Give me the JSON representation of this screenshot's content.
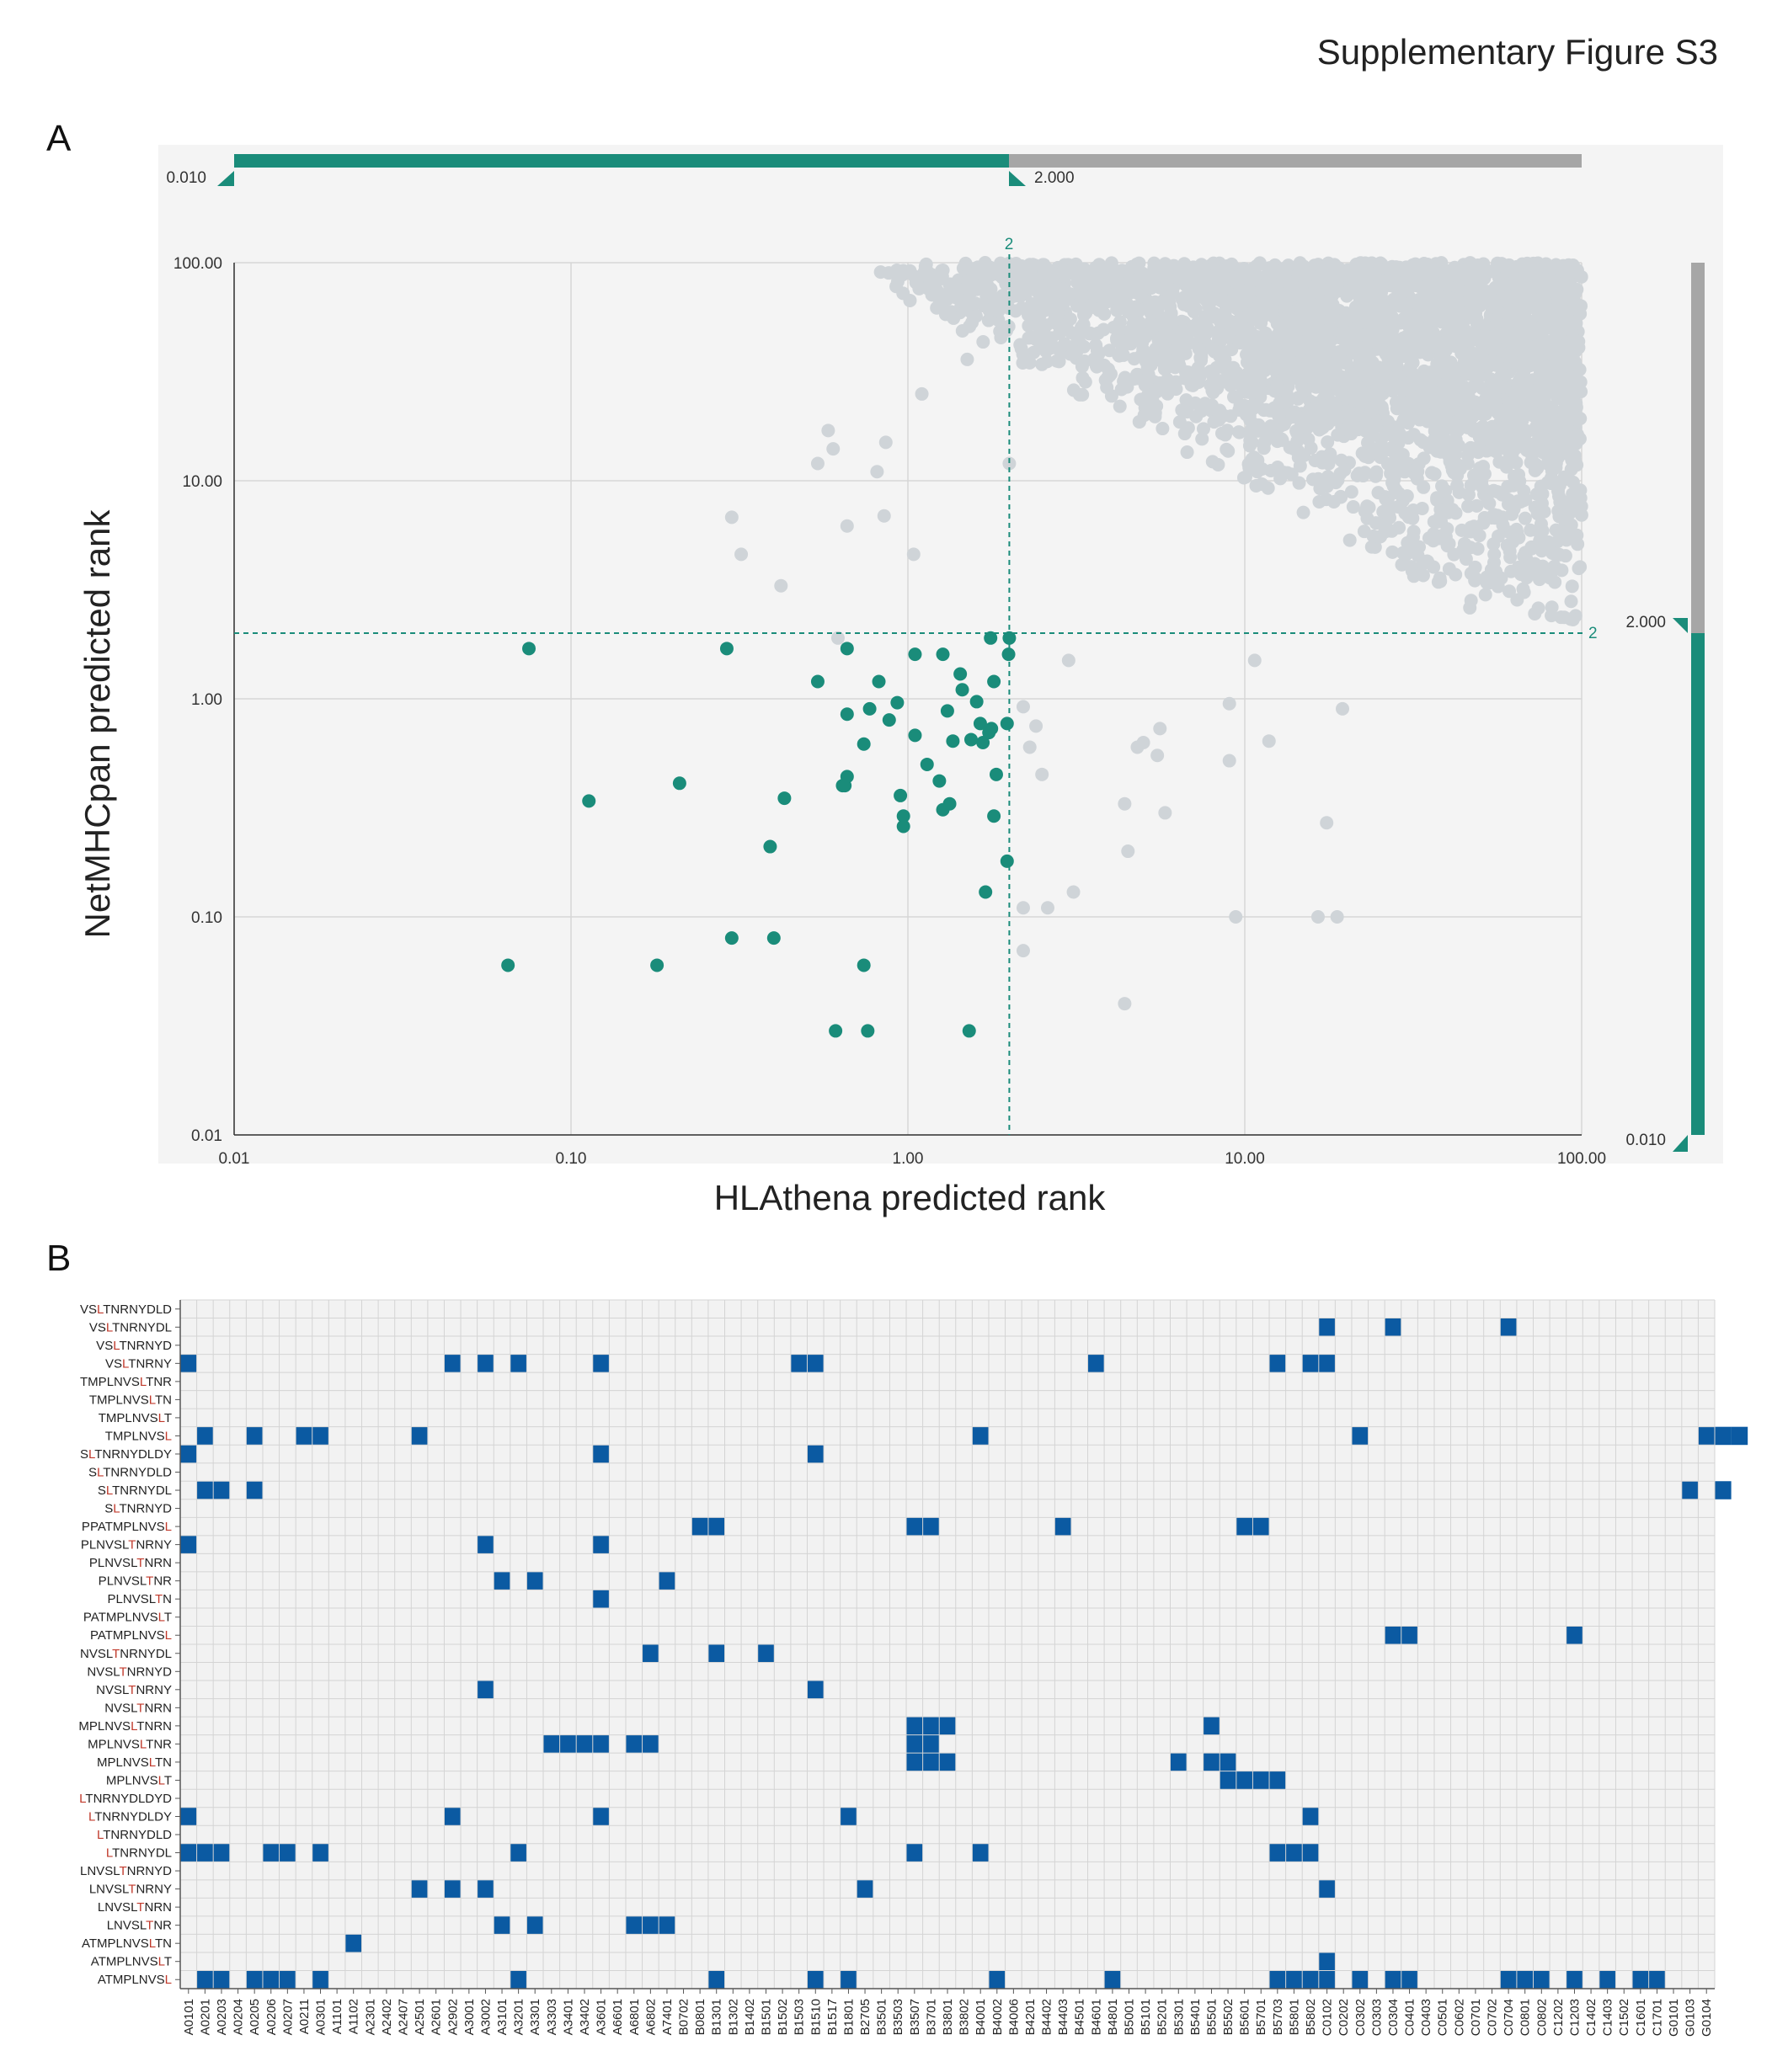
{
  "figure_title": "Supplementary Figure S3",
  "panel_a": {
    "label": "A",
    "slider_top": {
      "min_label": "0.010",
      "max_label": "2.000"
    },
    "slider_right": {
      "max_label": "2.000",
      "min_label": "0.010"
    },
    "threshold_label_x": "2",
    "threshold_label_y": "2"
  },
  "panel_b": {
    "label": "B"
  },
  "colors": {
    "selected": "#1a8c7a",
    "other": "#cfd4d8",
    "heat_on": "#0b5aa2",
    "grid": "#d9d9d9",
    "slider_gray": "#a6a6a6"
  },
  "chart_data": [
    {
      "type": "scatter",
      "xlabel": "HLAthena predicted rank",
      "ylabel": "NetMHCpan predicted rank",
      "x_scale": "log",
      "y_scale": "log",
      "xlim": [
        0.01,
        100
      ],
      "ylim": [
        0.01,
        100
      ],
      "x_ticks": [
        "0.01",
        "0.10",
        "1.00",
        "10.00",
        "100.00"
      ],
      "y_ticks": [
        "100.00",
        "10.00",
        "1.00",
        "0.10",
        "0.01"
      ],
      "thresholds": {
        "x": 2,
        "y": 2
      },
      "grid": true,
      "series": [
        {
          "name": "",
          "points": [
            [
              0.075,
              1.7
            ],
            [
              0.065,
              0.06
            ],
            [
              0.113,
              0.34
            ],
            [
              0.21,
              0.41
            ],
            [
              0.29,
              1.7
            ],
            [
              0.3,
              0.08
            ],
            [
              0.18,
              0.06
            ],
            [
              0.39,
              0.21
            ],
            [
              0.43,
              0.35
            ],
            [
              0.4,
              0.08
            ],
            [
              0.54,
              1.2
            ],
            [
              0.61,
              0.03
            ],
            [
              0.65,
              0.4
            ],
            [
              0.66,
              0.44
            ],
            [
              0.66,
              1.7
            ],
            [
              0.66,
              0.85
            ],
            [
              0.74,
              0.62
            ],
            [
              0.74,
              0.06
            ],
            [
              0.76,
              0.03
            ],
            [
              0.77,
              0.9
            ],
            [
              0.82,
              1.2
            ],
            [
              0.88,
              0.8
            ],
            [
              0.93,
              0.96
            ],
            [
              0.95,
              0.36
            ],
            [
              0.97,
              0.29
            ],
            [
              0.97,
              0.26
            ],
            [
              1.05,
              0.68
            ],
            [
              1.05,
              1.6
            ],
            [
              1.14,
              0.5
            ],
            [
              1.24,
              0.42
            ],
            [
              1.27,
              0.31
            ],
            [
              1.27,
              1.6
            ],
            [
              1.31,
              0.88
            ],
            [
              1.33,
              0.33
            ],
            [
              1.36,
              0.64
            ],
            [
              1.43,
              1.3
            ],
            [
              1.45,
              1.1
            ],
            [
              1.52,
              0.03
            ],
            [
              1.54,
              0.65
            ],
            [
              1.6,
              0.97
            ],
            [
              1.64,
              0.77
            ],
            [
              1.67,
              0.63
            ],
            [
              1.7,
              0.13
            ],
            [
              1.74,
              0.7
            ],
            [
              1.77,
              0.73
            ],
            [
              1.76,
              1.9
            ],
            [
              1.8,
              0.29
            ],
            [
              1.8,
              1.2
            ],
            [
              1.83,
              0.45
            ],
            [
              1.97,
              0.18
            ],
            [
              1.97,
              0.77
            ],
            [
              1.99,
              1.6
            ],
            [
              2.0,
              1.9
            ],
            [
              0.64,
              0.4
            ]
          ]
        },
        {
          "name": "",
          "points": [
            [
              0.3,
              6.8
            ],
            [
              0.32,
              4.6
            ],
            [
              0.42,
              3.3
            ],
            [
              0.54,
              12.0
            ],
            [
              0.58,
              17.0
            ],
            [
              0.62,
              1.9
            ],
            [
              0.66,
              6.2
            ],
            [
              0.6,
              14.0
            ],
            [
              0.81,
              11.0
            ],
            [
              0.85,
              6.9
            ],
            [
              0.86,
              15.0
            ],
            [
              1.04,
              4.6
            ],
            [
              1.1,
              25.0
            ],
            [
              1.5,
              36.0
            ],
            [
              2.0,
              12.0
            ],
            [
              2.3,
              98.0
            ],
            [
              3.0,
              1.5
            ],
            [
              4.4,
              0.04
            ],
            [
              4.4,
              0.33
            ],
            [
              4.5,
              0.2
            ],
            [
              4.8,
              0.6
            ],
            [
              5.0,
              0.63
            ],
            [
              5.5,
              0.55
            ],
            [
              5.6,
              0.73
            ],
            [
              5.8,
              0.3
            ],
            [
              2.2,
              0.11
            ],
            [
              2.6,
              0.11
            ],
            [
              2.2,
              0.07
            ],
            [
              3.1,
              0.13
            ],
            [
              2.5,
              0.45
            ],
            [
              2.3,
              0.6
            ],
            [
              2.4,
              0.75
            ],
            [
              2.2,
              0.92
            ],
            [
              9.4,
              0.1
            ],
            [
              16.5,
              0.1
            ],
            [
              18.8,
              0.1
            ],
            [
              17.5,
              0.27
            ],
            [
              9.0,
              0.52
            ],
            [
              11.8,
              0.64
            ],
            [
              19.5,
              0.9
            ],
            [
              9.0,
              0.95
            ],
            [
              10.7,
              1.5
            ]
          ]
        }
      ]
    },
    {
      "type": "heatmap",
      "rows": [
        "VSLTNRNYDLD",
        "VSLTNRNYDL",
        "VSLTNRNYD",
        "VSLTNRNY",
        "TMPLNVSLTNR",
        "TMPLNVSLTN",
        "TMPLNVSLT",
        "TMPLNVSL",
        "SLTNRNYDLDY",
        "SLTNRNYDLD",
        "SLTNRNYDL",
        "SLTNRNYD",
        "PPATMPLNVSL",
        "PLNVSLTNRNY",
        "PLNVSLTNRN",
        "PLNVSLTNR",
        "PLNVSLTN",
        "PATMPLNVSLT",
        "PATMPLNVSL",
        "NVSLTNRNYDL",
        "NVSLTNRNYD",
        "NVSLTNRNY",
        "NVSLTNRN",
        "MPLNVSLTNRN",
        "MPLNVSLTNR",
        "MPLNVSLTN",
        "MPLNVSLT",
        "LTNRNYDLDYD",
        "LTNRNYDLDY",
        "LTNRNYDLD",
        "LTNRNYDL",
        "LNVSLTNRNYD",
        "LNVSLTNRNY",
        "LNVSLTNRN",
        "LNVSLTNR",
        "ATMPLNVSLTN",
        "ATMPLNVSLT",
        "ATMPLNVSL"
      ],
      "row_highlight_index": [
        2,
        2,
        2,
        2,
        7,
        7,
        7,
        7,
        1,
        1,
        1,
        1,
        10,
        6,
        6,
        6,
        6,
        9,
        9,
        4,
        4,
        4,
        4,
        6,
        6,
        6,
        6,
        0,
        0,
        0,
        0,
        5,
        5,
        5,
        5,
        8,
        8,
        8
      ],
      "columns": [
        "A0101",
        "A0201",
        "A0203",
        "A0204",
        "A0205",
        "A0206",
        "A0207",
        "A0211",
        "A0301",
        "A1101",
        "A1102",
        "A2301",
        "A2402",
        "A2407",
        "A2501",
        "A2601",
        "A2902",
        "A3001",
        "A3002",
        "A3101",
        "A3201",
        "A3301",
        "A3303",
        "A3401",
        "A3402",
        "A3601",
        "A6601",
        "A6801",
        "A6802",
        "A7401",
        "B0702",
        "B0801",
        "B1301",
        "B1302",
        "B1402",
        "B1501",
        "B1502",
        "B1503",
        "B1510",
        "B1517",
        "B1801",
        "B2705",
        "B3501",
        "B3503",
        "B3507",
        "B3701",
        "B3801",
        "B3802",
        "B4001",
        "B4002",
        "B4006",
        "B4201",
        "B4402",
        "B4403",
        "B4501",
        "B4601",
        "B4801",
        "B5001",
        "B5101",
        "B5201",
        "B5301",
        "B5401",
        "B5501",
        "B5502",
        "B5601",
        "B5701",
        "B5703",
        "B5801",
        "B5802",
        "C0102",
        "C0202",
        "C0302",
        "C0303",
        "C0304",
        "C0401",
        "C0403",
        "C0501",
        "C0602",
        "C0701",
        "C0702",
        "C0704",
        "C0801",
        "C0802",
        "C1202",
        "C1203",
        "C1402",
        "C1403",
        "C1502",
        "C1601",
        "C1701",
        "G0101",
        "G0103",
        "G0104"
      ],
      "highlight_color": "#c0392b",
      "hits": {
        "1": [
          69,
          73,
          80
        ],
        "3": [
          0,
          16,
          18,
          20,
          25,
          37,
          38,
          55,
          66,
          68,
          69
        ],
        "7": [
          1,
          4,
          7,
          8,
          14,
          48,
          71,
          92,
          93,
          94
        ],
        "8": [
          0,
          25,
          38
        ],
        "10": [
          1,
          2,
          4,
          91,
          93
        ],
        "12": [
          31,
          32,
          44,
          45,
          53,
          64,
          65
        ],
        "13": [
          0,
          18,
          25
        ],
        "15": [
          19,
          21,
          29
        ],
        "16": [
          25
        ],
        "18": [
          73,
          74,
          84
        ],
        "19": [
          28,
          32,
          35
        ],
        "21": [
          18,
          38
        ],
        "23": [
          44,
          45,
          46,
          62
        ],
        "24": [
          22,
          23,
          24,
          25,
          27,
          28,
          44,
          45
        ],
        "25": [
          44,
          45,
          46,
          60,
          62,
          63
        ],
        "26": [
          63,
          64,
          65,
          66
        ],
        "28": [
          0,
          16,
          25,
          40,
          68
        ],
        "30": [
          0,
          1,
          2,
          5,
          6,
          8,
          20,
          44,
          48,
          66,
          67,
          68
        ],
        "32": [
          14,
          16,
          18,
          41,
          69
        ],
        "34": [
          19,
          21,
          27,
          28,
          29
        ],
        "35": [
          10
        ],
        "36": [
          69
        ],
        "37": [
          1,
          2,
          4,
          5,
          6,
          8,
          20,
          32,
          38,
          40,
          49,
          56,
          66,
          67,
          68,
          69,
          71,
          73,
          74,
          80,
          81,
          82,
          84,
          86,
          88,
          89
        ]
      }
    }
  ]
}
